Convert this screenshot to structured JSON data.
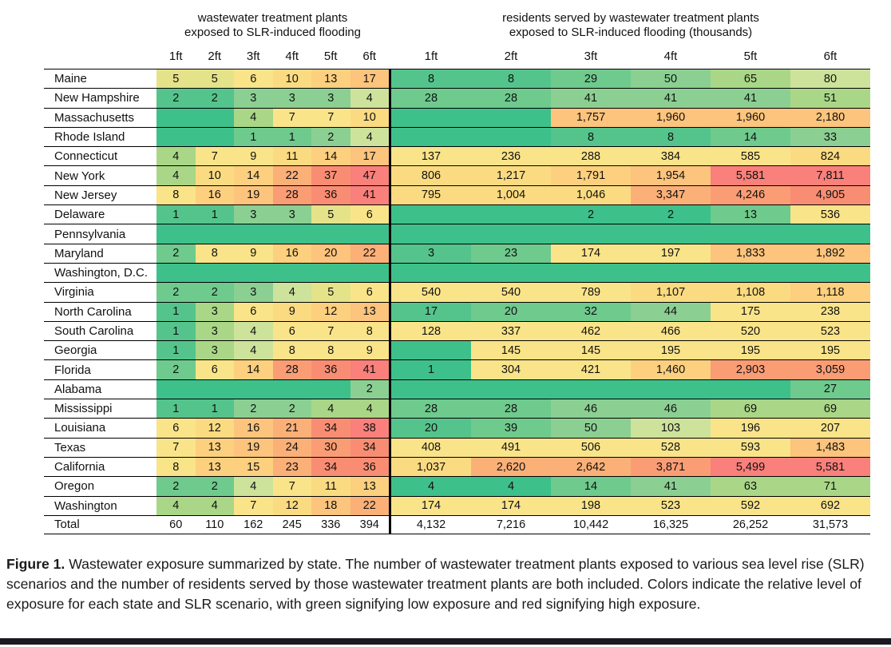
{
  "palette": {
    "g0": "#3ec08b",
    "g1": "#55c48c",
    "g2": "#6fca8d",
    "g3": "#8bd092",
    "g4": "#a9d787",
    "g5": "#cde29b",
    "y1": "#e5e389",
    "y2": "#fae489",
    "y3": "#fbdb81",
    "o1": "#fcd07e",
    "o2": "#fcc47c",
    "o3": "#fbb078",
    "o4": "#fa9d75",
    "r1": "#f98d73",
    "r2": "#f9807b",
    "total_bg": "#ffffff"
  },
  "chart_data": {
    "type": "heatmap",
    "columns": [
      "1ft",
      "2ft",
      "3ft",
      "4ft",
      "5ft",
      "6ft"
    ],
    "left_title_line1": "wastewater treatment plants",
    "left_title_line2": "exposed to SLR-induced flooding",
    "right_title_line1": "residents served by wastewater treatment plants",
    "right_title_line2": "exposed to SLR-induced flooding (thousands)",
    "legend": "green = low exposure, red = high exposure",
    "rows": [
      {
        "state": "Maine",
        "left_values": [
          "5",
          "5",
          "6",
          "10",
          "13",
          "17"
        ],
        "left_colors": [
          "y1",
          "y1",
          "y2",
          "y3",
          "o1",
          "o2"
        ],
        "right_values": [
          "8",
          "8",
          "29",
          "50",
          "65",
          "80"
        ],
        "right_colors": [
          "g1",
          "g1",
          "g2",
          "g3",
          "g4",
          "g5"
        ]
      },
      {
        "state": "New Hampshire",
        "left_values": [
          "2",
          "2",
          "3",
          "3",
          "3",
          "4"
        ],
        "left_colors": [
          "g1",
          "g1",
          "g3",
          "g3",
          "g3",
          "g5"
        ],
        "right_values": [
          "28",
          "28",
          "41",
          "41",
          "41",
          "51"
        ],
        "right_colors": [
          "g2",
          "g2",
          "g3",
          "g3",
          "g3",
          "g4"
        ]
      },
      {
        "state": "Massachusetts",
        "left_values": [
          "",
          "",
          "4",
          "7",
          "7",
          "10"
        ],
        "left_colors": [
          "g0",
          "g0",
          "g4",
          "y2",
          "y2",
          "y3"
        ],
        "right_values": [
          "",
          "",
          "1,757",
          "1,960",
          "1,960",
          "2,180"
        ],
        "right_colors": [
          "g0",
          "g0",
          "o2",
          "o2",
          "o2",
          "o2"
        ]
      },
      {
        "state": "Rhode Island",
        "left_values": [
          "",
          "",
          "1",
          "1",
          "2",
          "4"
        ],
        "left_colors": [
          "g0",
          "g0",
          "g2",
          "g2",
          "g3",
          "g5"
        ],
        "right_values": [
          "",
          "",
          "8",
          "8",
          "14",
          "33"
        ],
        "right_colors": [
          "g0",
          "g0",
          "g1",
          "g1",
          "g2",
          "g3"
        ]
      },
      {
        "state": "Connecticut",
        "left_values": [
          "4",
          "7",
          "9",
          "11",
          "14",
          "17"
        ],
        "left_colors": [
          "g4",
          "y2",
          "y2",
          "y3",
          "o1",
          "o2"
        ],
        "right_values": [
          "137",
          "236",
          "288",
          "384",
          "585",
          "824"
        ],
        "right_colors": [
          "y2",
          "y2",
          "y2",
          "y2",
          "y2",
          "y3"
        ]
      },
      {
        "state": "New York",
        "left_values": [
          "4",
          "10",
          "14",
          "22",
          "37",
          "47"
        ],
        "left_colors": [
          "g4",
          "y3",
          "o1",
          "o3",
          "r1",
          "r2"
        ],
        "right_values": [
          "806",
          "1,217",
          "1,791",
          "1,954",
          "5,581",
          "7,811"
        ],
        "right_colors": [
          "y3",
          "y3",
          "o1",
          "o2",
          "r2",
          "r2"
        ]
      },
      {
        "state": "New Jersey",
        "left_values": [
          "8",
          "16",
          "19",
          "28",
          "36",
          "41"
        ],
        "left_colors": [
          "y2",
          "o1",
          "o2",
          "o4",
          "r1",
          "r2"
        ],
        "right_values": [
          "795",
          "1,004",
          "1,046",
          "3,347",
          "4,246",
          "4,905"
        ],
        "right_colors": [
          "y3",
          "y3",
          "y3",
          "o3",
          "o4",
          "r1"
        ]
      },
      {
        "state": "Delaware",
        "left_values": [
          "1",
          "1",
          "3",
          "3",
          "5",
          "6"
        ],
        "left_colors": [
          "g1",
          "g1",
          "g3",
          "g3",
          "y1",
          "y2"
        ],
        "right_values": [
          "",
          "",
          "2",
          "2",
          "13",
          "536"
        ],
        "right_colors": [
          "g0",
          "g0",
          "g0",
          "g0",
          "g2",
          "y2"
        ]
      },
      {
        "state": "Pennsylvania",
        "left_values": [
          "",
          "",
          "",
          "",
          "",
          ""
        ],
        "left_colors": [
          "g0",
          "g0",
          "g0",
          "g0",
          "g0",
          "g0"
        ],
        "right_values": [
          "",
          "",
          "",
          "",
          "",
          ""
        ],
        "right_colors": [
          "g0",
          "g0",
          "g0",
          "g0",
          "g0",
          "g0"
        ]
      },
      {
        "state": "Maryland",
        "left_values": [
          "2",
          "8",
          "9",
          "16",
          "20",
          "22"
        ],
        "left_colors": [
          "g2",
          "y2",
          "y2",
          "o1",
          "o2",
          "o3"
        ],
        "right_values": [
          "3",
          "23",
          "174",
          "197",
          "1,833",
          "1,892"
        ],
        "right_colors": [
          "g1",
          "g2",
          "y2",
          "y2",
          "o2",
          "o2"
        ]
      },
      {
        "state": "Washington, D.C.",
        "left_values": [
          "",
          "",
          "",
          "",
          "",
          ""
        ],
        "left_colors": [
          "g0",
          "g0",
          "g0",
          "g0",
          "g0",
          "g0"
        ],
        "right_values": [
          "",
          "",
          "",
          "",
          "",
          ""
        ],
        "right_colors": [
          "g0",
          "g0",
          "g0",
          "g0",
          "g0",
          "g0"
        ]
      },
      {
        "state": "Virginia",
        "left_values": [
          "2",
          "2",
          "3",
          "4",
          "5",
          "6"
        ],
        "left_colors": [
          "g2",
          "g2",
          "g3",
          "g5",
          "y1",
          "y2"
        ],
        "right_values": [
          "540",
          "540",
          "789",
          "1,107",
          "1,108",
          "1,118"
        ],
        "right_colors": [
          "y2",
          "y2",
          "y2",
          "y3",
          "y3",
          "o1"
        ]
      },
      {
        "state": "North Carolina",
        "left_values": [
          "1",
          "3",
          "6",
          "9",
          "12",
          "13"
        ],
        "left_colors": [
          "g1",
          "g4",
          "y2",
          "y3",
          "o1",
          "o2"
        ],
        "right_values": [
          "17",
          "20",
          "32",
          "44",
          "175",
          "238"
        ],
        "right_colors": [
          "g1",
          "g2",
          "g2",
          "g3",
          "y2",
          "y2"
        ]
      },
      {
        "state": "South Carolina",
        "left_values": [
          "1",
          "3",
          "4",
          "6",
          "7",
          "8"
        ],
        "left_colors": [
          "g1",
          "g4",
          "g5",
          "y2",
          "y2",
          "y2"
        ],
        "right_values": [
          "128",
          "337",
          "462",
          "466",
          "520",
          "523"
        ],
        "right_colors": [
          "y2",
          "y2",
          "y2",
          "y2",
          "y2",
          "y2"
        ]
      },
      {
        "state": "Georgia",
        "left_values": [
          "1",
          "3",
          "4",
          "8",
          "8",
          "9"
        ],
        "left_colors": [
          "g1",
          "g4",
          "g5",
          "y2",
          "y2",
          "y2"
        ],
        "right_values": [
          "",
          "145",
          "145",
          "195",
          "195",
          "195"
        ],
        "right_colors": [
          "g0",
          "y2",
          "y2",
          "y2",
          "y2",
          "y2"
        ]
      },
      {
        "state": "Florida",
        "left_values": [
          "2",
          "6",
          "14",
          "28",
          "36",
          "41"
        ],
        "left_colors": [
          "g2",
          "y2",
          "o1",
          "o4",
          "r1",
          "r2"
        ],
        "right_values": [
          "1",
          "304",
          "421",
          "1,460",
          "2,903",
          "3,059"
        ],
        "right_colors": [
          "g0",
          "y2",
          "y2",
          "o1",
          "o4",
          "o4"
        ]
      },
      {
        "state": "Alabama",
        "left_values": [
          "",
          "",
          "",
          "",
          "",
          "2"
        ],
        "left_colors": [
          "g0",
          "g0",
          "g0",
          "g0",
          "g0",
          "g3"
        ],
        "right_values": [
          "",
          "",
          "",
          "",
          "",
          "27"
        ],
        "right_colors": [
          "g0",
          "g0",
          "g0",
          "g0",
          "g0",
          "g2"
        ]
      },
      {
        "state": "Mississippi",
        "left_values": [
          "1",
          "1",
          "2",
          "2",
          "4",
          "4"
        ],
        "left_colors": [
          "g1",
          "g1",
          "g3",
          "g3",
          "g4",
          "g4"
        ],
        "right_values": [
          "28",
          "28",
          "46",
          "46",
          "69",
          "69"
        ],
        "right_colors": [
          "g2",
          "g2",
          "g3",
          "g3",
          "g4",
          "g4"
        ]
      },
      {
        "state": "Louisiana",
        "left_values": [
          "6",
          "12",
          "16",
          "21",
          "34",
          "38"
        ],
        "left_colors": [
          "y2",
          "y3",
          "o2",
          "o3",
          "r1",
          "r2"
        ],
        "right_values": [
          "20",
          "39",
          "50",
          "103",
          "196",
          "207"
        ],
        "right_colors": [
          "g1",
          "g2",
          "g3",
          "g5",
          "y2",
          "y2"
        ]
      },
      {
        "state": "Texas",
        "left_values": [
          "7",
          "13",
          "19",
          "24",
          "30",
          "34"
        ],
        "left_colors": [
          "y2",
          "o1",
          "o2",
          "o3",
          "o4",
          "r1"
        ],
        "right_values": [
          "408",
          "491",
          "506",
          "528",
          "593",
          "1,483"
        ],
        "right_colors": [
          "y2",
          "y2",
          "y2",
          "y2",
          "y2",
          "o2"
        ]
      },
      {
        "state": "California",
        "left_values": [
          "8",
          "13",
          "15",
          "23",
          "34",
          "36"
        ],
        "left_colors": [
          "y2",
          "o1",
          "o1",
          "o3",
          "r1",
          "r1"
        ],
        "right_values": [
          "1,037",
          "2,620",
          "2,642",
          "3,871",
          "5,499",
          "5,581"
        ],
        "right_colors": [
          "y3",
          "o3",
          "o3",
          "o4",
          "r2",
          "r2"
        ]
      },
      {
        "state": "Oregon",
        "left_values": [
          "2",
          "2",
          "4",
          "7",
          "11",
          "13"
        ],
        "left_colors": [
          "g2",
          "g2",
          "g5",
          "y2",
          "y3",
          "o1"
        ],
        "right_values": [
          "4",
          "4",
          "14",
          "41",
          "63",
          "71"
        ],
        "right_colors": [
          "g0",
          "g0",
          "g2",
          "g3",
          "g4",
          "g4"
        ]
      },
      {
        "state": "Washington",
        "left_values": [
          "4",
          "4",
          "7",
          "12",
          "18",
          "22"
        ],
        "left_colors": [
          "g4",
          "g4",
          "y2",
          "y3",
          "o2",
          "o3"
        ],
        "right_values": [
          "174",
          "174",
          "198",
          "523",
          "592",
          "692"
        ],
        "right_colors": [
          "y2",
          "y2",
          "y2",
          "y2",
          "y2",
          "y2"
        ]
      }
    ],
    "total": {
      "label": "Total",
      "left_values": [
        "60",
        "110",
        "162",
        "245",
        "336",
        "394"
      ],
      "right_values": [
        "4,132",
        "7,216",
        "10,442",
        "16,325",
        "26,252",
        "31,573"
      ]
    }
  },
  "caption": {
    "label": "Figure 1.",
    "text": " Wastewater exposure summarized by state. The number of wastewater treatment plants exposed to various sea level rise (SLR) scenarios and the number of residents served by those wastewater treatment plants are both included. Colors indicate the relative level of exposure for each state and SLR scenario, with green signifying low exposure and red signifying high exposure."
  }
}
